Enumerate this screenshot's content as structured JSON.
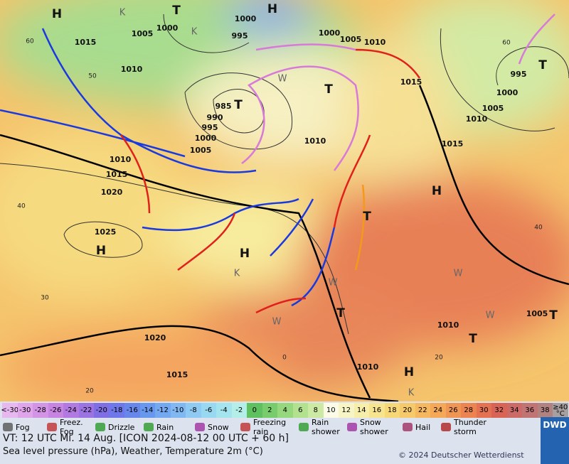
{
  "map": {
    "pressure_labels": [
      1015,
      1000,
      1000,
      995,
      1005,
      1010,
      1000,
      1005,
      1010,
      1015,
      995,
      1000,
      1005,
      1010,
      1015,
      985,
      990,
      995,
      1000,
      1005,
      1010,
      1015,
      1020,
      1025,
      1010,
      1020,
      1015,
      1010,
      1010,
      1005
    ],
    "center_labels": [
      "H",
      "H",
      "T",
      "T",
      "T",
      "T",
      "H",
      "H",
      "H",
      "T",
      "T",
      "T",
      "H",
      "T",
      "W",
      "W",
      "W",
      "W",
      "W",
      "K",
      "K",
      "K",
      "K"
    ],
    "grid_labels": [
      60,
      50,
      40,
      30,
      20,
      60,
      40,
      0,
      20
    ]
  },
  "scale": [
    {
      "label": "<-30",
      "color": "#e7b8ef"
    },
    {
      "label": -30,
      "color": "#dfa4ea"
    },
    {
      "label": -28,
      "color": "#d494e6"
    },
    {
      "label": -26,
      "color": "#c784e0"
    },
    {
      "label": -24,
      "color": "#b27ae0"
    },
    {
      "label": -22,
      "color": "#9c74e2"
    },
    {
      "label": -20,
      "color": "#7f6ee4"
    },
    {
      "label": -18,
      "color": "#6f78e8"
    },
    {
      "label": -16,
      "color": "#6788ea"
    },
    {
      "label": -14,
      "color": "#6898ee"
    },
    {
      "label": -12,
      "color": "#74a8f0"
    },
    {
      "label": -10,
      "color": "#82b8f2"
    },
    {
      "label": -8,
      "color": "#8ecaf2"
    },
    {
      "label": -6,
      "color": "#98d8f0"
    },
    {
      "label": -4,
      "color": "#a4e4ee"
    },
    {
      "label": -2,
      "color": "#b4eee8"
    },
    {
      "label": 0,
      "color": "#5fc05f"
    },
    {
      "label": 2,
      "color": "#78cc6c"
    },
    {
      "label": 4,
      "color": "#96d87e"
    },
    {
      "label": 6,
      "color": "#b2e290"
    },
    {
      "label": 8,
      "color": "#cceaa4"
    },
    {
      "label": 10,
      "color": "#fbfbe8"
    },
    {
      "label": 12,
      "color": "#f7f5c6"
    },
    {
      "label": 14,
      "color": "#f6eeaa"
    },
    {
      "label": 16,
      "color": "#f6e48e"
    },
    {
      "label": 18,
      "color": "#f6d878"
    },
    {
      "label": 20,
      "color": "#f6c96a"
    },
    {
      "label": 22,
      "color": "#f5b860"
    },
    {
      "label": 24,
      "color": "#f4a858"
    },
    {
      "label": 26,
      "color": "#f09654"
    },
    {
      "label": 28,
      "color": "#ec8452"
    },
    {
      "label": 30,
      "color": "#e47252"
    },
    {
      "label": 32,
      "color": "#d86456"
    },
    {
      "label": 34,
      "color": "#cc6a68"
    },
    {
      "label": 36,
      "color": "#c07474"
    },
    {
      "label": 38,
      "color": "#b08280"
    },
    {
      "label": "≥40 °C",
      "color": "#a8a0a0"
    }
  ],
  "legend": [
    "Fog",
    "Freez. Fog",
    "Drizzle",
    "Rain",
    "Snow",
    "Freezing rain",
    "Rain shower",
    "Snow shower",
    "Hail",
    "Thunder storm"
  ],
  "footer": {
    "valid_time": "VT: 12 UTC Mi.  14 Aug. [ICON 2024-08-12  00 UTC + 60 h]",
    "subtitle": "Sea level pressure (hPa), Weather, Temperature 2m (°C)",
    "copyright": "© 2024 Deutscher Wetterdienst",
    "logo": "DWD"
  }
}
